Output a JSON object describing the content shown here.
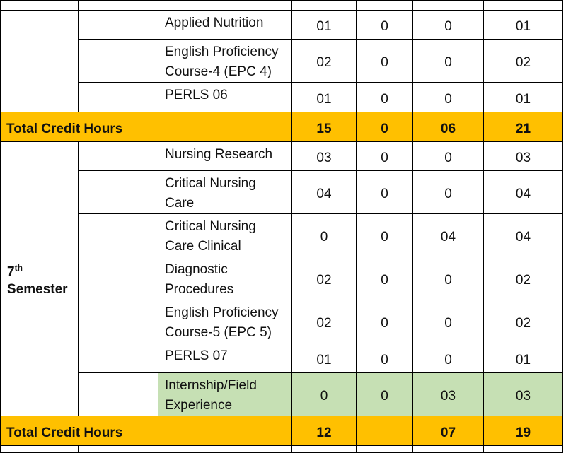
{
  "table": {
    "blocks": [
      {
        "rows": [
          {
            "course": "Applied Nutrition",
            "credits": [
              "01",
              "0",
              "0",
              "01"
            ]
          },
          {
            "course": "English Proficiency Course-4 (EPC 4)",
            "credits": [
              "02",
              "0",
              "0",
              "02"
            ]
          },
          {
            "course": "PERLS 06",
            "credits": [
              "01",
              "0",
              "0",
              "01"
            ]
          }
        ],
        "total": {
          "label": "Total Credit Hours",
          "credits": [
            "15",
            "0",
            "06",
            "21"
          ]
        }
      },
      {
        "semester": {
          "number": "7",
          "suffix": "th",
          "word": "Semester"
        },
        "rows": [
          {
            "course": "Nursing Research",
            "credits": [
              "03",
              "0",
              "0",
              "03"
            ]
          },
          {
            "course": "Critical Nursing Care",
            "credits": [
              "04",
              "0",
              "0",
              "04"
            ]
          },
          {
            "course": "Critical Nursing Care Clinical",
            "credits": [
              "0",
              "0",
              "04",
              "04"
            ]
          },
          {
            "course": "Diagnostic Procedures",
            "credits": [
              "02",
              "0",
              "0",
              "02"
            ]
          },
          {
            "course": "English Proficiency Course-5 (EPC 5)",
            "credits": [
              "02",
              "0",
              "0",
              "02"
            ]
          },
          {
            "course": "PERLS 07",
            "credits": [
              "01",
              "0",
              "0",
              "01"
            ]
          },
          {
            "course": "Internship/Field Experience",
            "credits": [
              "0",
              "0",
              "03",
              "03"
            ],
            "highlight": "#c6e0b4"
          }
        ],
        "total": {
          "label": "Total Credit Hours",
          "credits": [
            "12",
            null,
            "07",
            "19"
          ]
        }
      }
    ],
    "total_color": "#ffc000"
  }
}
